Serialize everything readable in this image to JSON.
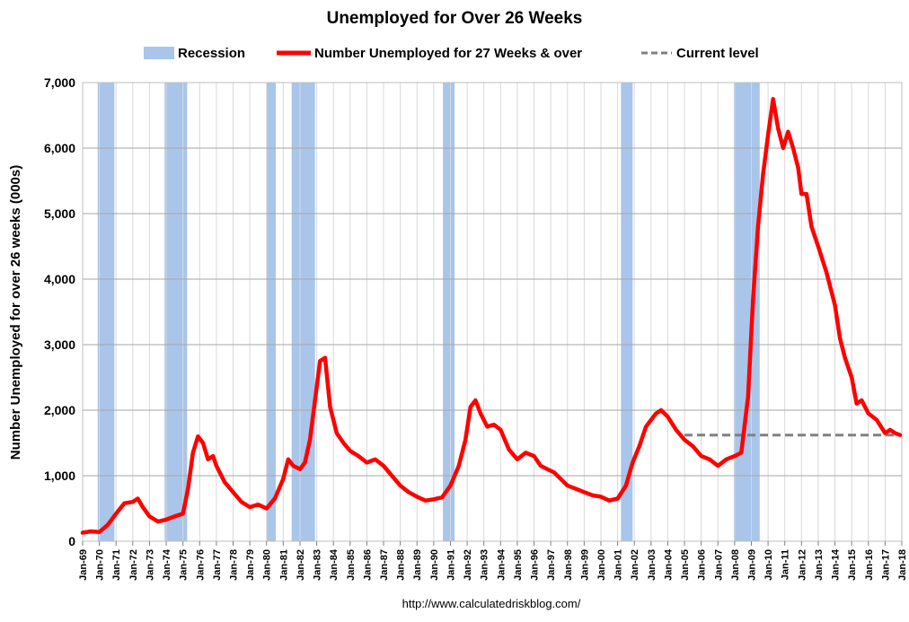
{
  "chart_data": {
    "type": "line",
    "title": "Unemployed for Over 26 Weeks",
    "ylabel": "Number Unemployed for over 26 weeks (000s)",
    "xlabel": "",
    "source": "http://www.calculatedriskblog.com/",
    "ylim": [
      0,
      7000
    ],
    "yticks": [
      0,
      1000,
      2000,
      3000,
      4000,
      5000,
      6000,
      7000
    ],
    "ytick_labels": [
      "0",
      "1,000",
      "2,000",
      "3,000",
      "4,000",
      "5,000",
      "6,000",
      "7,000"
    ],
    "xlim": [
      1969.0,
      2018.0
    ],
    "xtick_labels": [
      "Jan-69",
      "Jan-70",
      "Jan-71",
      "Jan-72",
      "Jan-73",
      "Jan-74",
      "Jan-75",
      "Jan-76",
      "Jan-77",
      "Jan-78",
      "Jan-79",
      "Jan-80",
      "Jan-81",
      "Jan-82",
      "Jan-83",
      "Jan-84",
      "Jan-85",
      "Jan-86",
      "Jan-87",
      "Jan-88",
      "Jan-89",
      "Jan-90",
      "Jan-91",
      "Jan-92",
      "Jan-93",
      "Jan-94",
      "Jan-95",
      "Jan-96",
      "Jan-97",
      "Jan-98",
      "Jan-99",
      "Jan-00",
      "Jan-01",
      "Jan-02",
      "Jan-03",
      "Jan-04",
      "Jan-05",
      "Jan-06",
      "Jan-07",
      "Jan-08",
      "Jan-09",
      "Jan-10",
      "Jan-11",
      "Jan-12",
      "Jan-13",
      "Jan-14",
      "Jan-15",
      "Jan-16",
      "Jan-17",
      "Jan-18"
    ],
    "grid": true,
    "legend_position": "top",
    "legend": {
      "recession": "Recession",
      "series": "Number Unemployed for 27 Weeks & over",
      "current": "Current level"
    },
    "colors": {
      "recession": "#a9c5ea",
      "series": "#ff0000",
      "current": "#808080",
      "grid": "#bfbfbf"
    },
    "recessions": [
      [
        1969.9,
        1970.9
      ],
      [
        1973.9,
        1975.25
      ],
      [
        1980.0,
        1980.55
      ],
      [
        1981.5,
        1982.9
      ],
      [
        1990.55,
        1991.25
      ],
      [
        2001.2,
        2001.9
      ],
      [
        2007.95,
        2009.5
      ]
    ],
    "current_level": {
      "value": 1620,
      "x_start": 2005.0,
      "x_end": 2018.0
    },
    "series": [
      {
        "name": "Number Unemployed for 27 Weeks & over",
        "x": [
          1969.0,
          1969.5,
          1970.0,
          1970.5,
          1971.0,
          1971.5,
          1972.0,
          1972.3,
          1972.6,
          1973.0,
          1973.5,
          1974.0,
          1974.5,
          1975.0,
          1975.3,
          1975.6,
          1975.9,
          1976.2,
          1976.5,
          1976.8,
          1977.0,
          1977.5,
          1978.0,
          1978.5,
          1979.0,
          1979.5,
          1980.0,
          1980.5,
          1981.0,
          1981.3,
          1981.6,
          1982.0,
          1982.3,
          1982.6,
          1982.9,
          1983.2,
          1983.5,
          1983.8,
          1984.2,
          1984.6,
          1985.0,
          1985.5,
          1986.0,
          1986.5,
          1987.0,
          1987.5,
          1988.0,
          1988.5,
          1989.0,
          1989.5,
          1990.0,
          1990.5,
          1991.0,
          1991.5,
          1991.9,
          1992.2,
          1992.5,
          1992.8,
          1993.2,
          1993.6,
          1994.0,
          1994.5,
          1995.0,
          1995.5,
          1996.0,
          1996.4,
          1996.8,
          1997.2,
          1997.6,
          1998.0,
          1998.5,
          1999.0,
          1999.5,
          2000.0,
          2000.5,
          2001.0,
          2001.5,
          2001.9,
          2002.3,
          2002.7,
          2003.0,
          2003.3,
          2003.6,
          2004.0,
          2004.5,
          2005.0,
          2005.5,
          2006.0,
          2006.5,
          2007.0,
          2007.5,
          2008.0,
          2008.4,
          2008.8,
          2009.1,
          2009.4,
          2009.7,
          2010.0,
          2010.3,
          2010.6,
          2010.9,
          2011.2,
          2011.5,
          2011.8,
          2012.0,
          2012.3,
          2012.6,
          2013.0,
          2013.5,
          2014.0,
          2014.3,
          2014.6,
          2015.0,
          2015.3,
          2015.6,
          2016.0,
          2016.5,
          2017.0,
          2017.3,
          2017.6,
          2017.9
        ],
        "values": [
          130,
          150,
          140,
          250,
          420,
          580,
          600,
          650,
          520,
          380,
          300,
          330,
          380,
          420,
          800,
          1350,
          1600,
          1500,
          1250,
          1300,
          1150,
          900,
          750,
          600,
          520,
          560,
          500,
          650,
          950,
          1250,
          1150,
          1100,
          1200,
          1550,
          2150,
          2750,
          2800,
          2050,
          1650,
          1500,
          1380,
          1300,
          1200,
          1250,
          1150,
          1000,
          850,
          750,
          680,
          620,
          640,
          670,
          850,
          1150,
          1550,
          2050,
          2150,
          1950,
          1750,
          1780,
          1700,
          1400,
          1250,
          1350,
          1300,
          1150,
          1100,
          1050,
          950,
          850,
          800,
          750,
          700,
          680,
          620,
          650,
          850,
          1200,
          1450,
          1750,
          1850,
          1950,
          2000,
          1900,
          1700,
          1550,
          1450,
          1300,
          1250,
          1150,
          1250,
          1300,
          1350,
          2200,
          3700,
          4800,
          5600,
          6200,
          6750,
          6300,
          6000,
          6250,
          6000,
          5700,
          5300,
          5300,
          4800,
          4500,
          4100,
          3600,
          3100,
          2800,
          2500,
          2100,
          2150,
          1950,
          1850,
          1650,
          1700,
          1650,
          1620
        ]
      }
    ]
  }
}
